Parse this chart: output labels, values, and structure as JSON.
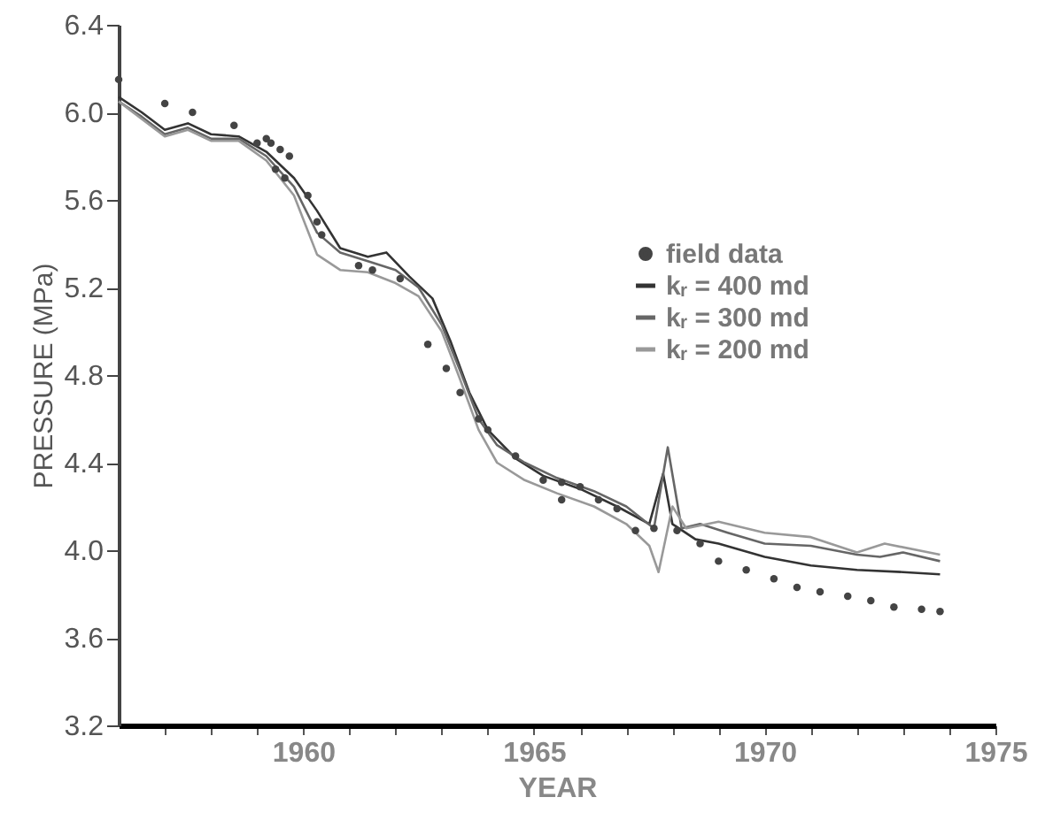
{
  "chart_data": {
    "type": "line",
    "xlabel": "YEAR",
    "ylabel": "PRESSURE (MPa)",
    "xlim": [
      1956,
      1975
    ],
    "ylim": [
      3.2,
      6.4
    ],
    "xticks": [
      {
        "value": 1957,
        "label": null
      },
      {
        "value": 1958,
        "label": null
      },
      {
        "value": 1959,
        "label": null
      },
      1960,
      {
        "value": 1961,
        "label": null
      },
      {
        "value": 1962,
        "label": null
      },
      {
        "value": 1963,
        "label": null
      },
      {
        "value": 1964,
        "label": null
      },
      1965,
      {
        "value": 1966,
        "label": null
      },
      {
        "value": 1967,
        "label": null
      },
      {
        "value": 1968,
        "label": null
      },
      {
        "value": 1969,
        "label": null
      },
      1970,
      {
        "value": 1971,
        "label": null
      },
      {
        "value": 1972,
        "label": null
      },
      {
        "value": 1973,
        "label": null
      },
      {
        "value": 1974,
        "label": null
      },
      1975
    ],
    "yticks": [
      3.2,
      3.6,
      {
        "value": 4.0,
        "label": "4.0"
      },
      4.4,
      4.8,
      5.2,
      5.6,
      {
        "value": 6.0,
        "label": "6.0"
      },
      6.4
    ],
    "grid": false,
    "legend": "right",
    "series": [
      {
        "name": "field data",
        "type": "scatter",
        "marker": "circle",
        "color": "#444444",
        "x": [
          1956.0,
          1957.0,
          1957.6,
          1958.5,
          1959.0,
          1959.2,
          1959.3,
          1959.5,
          1959.7,
          1959.4,
          1959.6,
          1960.1,
          1960.3,
          1960.4,
          1961.2,
          1961.5,
          1962.1,
          1962.7,
          1963.1,
          1963.4,
          1963.8,
          1964.0,
          1964.6,
          1965.2,
          1965.6,
          1966.0,
          1965.6,
          1966.4,
          1966.8,
          1967.2,
          1967.6,
          1968.1,
          1968.6,
          1969.0,
          1969.6,
          1970.2,
          1970.7,
          1971.2,
          1971.8,
          1972.3,
          1972.8,
          1973.4,
          1973.8
        ],
        "values": [
          6.15,
          6.04,
          6.0,
          5.94,
          5.86,
          5.88,
          5.86,
          5.83,
          5.8,
          5.74,
          5.7,
          5.62,
          5.5,
          5.44,
          5.3,
          5.28,
          5.24,
          4.94,
          4.83,
          4.72,
          4.6,
          4.55,
          4.43,
          4.32,
          4.31,
          4.29,
          4.23,
          4.23,
          4.19,
          4.09,
          4.1,
          4.09,
          4.03,
          3.95,
          3.91,
          3.87,
          3.83,
          3.81,
          3.79,
          3.77,
          3.74,
          3.73,
          3.72
        ]
      },
      {
        "name": "kᵣ = 400 md",
        "color": "#333333",
        "x": [
          1956.0,
          1956.5,
          1957.0,
          1957.5,
          1958.0,
          1958.6,
          1959.2,
          1959.8,
          1960.3,
          1960.8,
          1961.4,
          1961.8,
          1962.3,
          1962.8,
          1963.2,
          1963.6,
          1964.0,
          1964.6,
          1965.2,
          1966.0,
          1966.8,
          1967.5,
          1967.8,
          1968.0,
          1968.5,
          1969.0,
          1970.0,
          1971.0,
          1972.0,
          1973.0,
          1973.8
        ],
        "values": [
          6.07,
          6.0,
          5.92,
          5.95,
          5.9,
          5.89,
          5.82,
          5.7,
          5.55,
          5.38,
          5.34,
          5.36,
          5.25,
          5.15,
          4.95,
          4.72,
          4.55,
          4.42,
          4.34,
          4.28,
          4.2,
          4.12,
          4.35,
          4.12,
          4.05,
          4.03,
          3.97,
          3.93,
          3.91,
          3.9,
          3.89
        ]
      },
      {
        "name": "kᵣ = 300 md",
        "color": "#666666",
        "x": [
          1956.0,
          1956.5,
          1957.0,
          1957.5,
          1958.0,
          1958.6,
          1959.2,
          1959.8,
          1960.3,
          1960.8,
          1961.4,
          1962.0,
          1962.5,
          1963.0,
          1963.4,
          1963.8,
          1964.2,
          1964.8,
          1965.5,
          1966.3,
          1967.0,
          1967.6,
          1967.9,
          1968.2,
          1968.6,
          1969.2,
          1970.0,
          1971.0,
          1972.0,
          1972.5,
          1973.0,
          1973.8
        ],
        "values": [
          6.05,
          5.98,
          5.9,
          5.93,
          5.88,
          5.88,
          5.8,
          5.66,
          5.45,
          5.36,
          5.32,
          5.28,
          5.2,
          5.03,
          4.82,
          4.6,
          4.48,
          4.4,
          4.33,
          4.27,
          4.2,
          4.1,
          4.47,
          4.1,
          4.12,
          4.08,
          4.03,
          4.02,
          3.98,
          3.97,
          3.99,
          3.95
        ]
      },
      {
        "name": "kᵣ = 200 md",
        "color": "#999999",
        "x": [
          1956.0,
          1956.5,
          1957.0,
          1957.5,
          1958.0,
          1958.6,
          1959.2,
          1959.8,
          1960.3,
          1960.8,
          1961.4,
          1962.0,
          1962.5,
          1963.0,
          1963.4,
          1963.8,
          1964.2,
          1964.8,
          1965.5,
          1966.3,
          1967.0,
          1967.5,
          1967.7,
          1968.0,
          1968.3,
          1969.0,
          1970.0,
          1971.0,
          1972.0,
          1972.6,
          1973.8
        ],
        "values": [
          6.05,
          5.97,
          5.89,
          5.92,
          5.87,
          5.87,
          5.78,
          5.62,
          5.35,
          5.28,
          5.27,
          5.22,
          5.16,
          5.0,
          4.78,
          4.55,
          4.4,
          4.32,
          4.26,
          4.2,
          4.12,
          4.02,
          3.9,
          4.2,
          4.1,
          4.13,
          4.08,
          4.06,
          3.99,
          4.03,
          3.98
        ]
      }
    ]
  }
}
